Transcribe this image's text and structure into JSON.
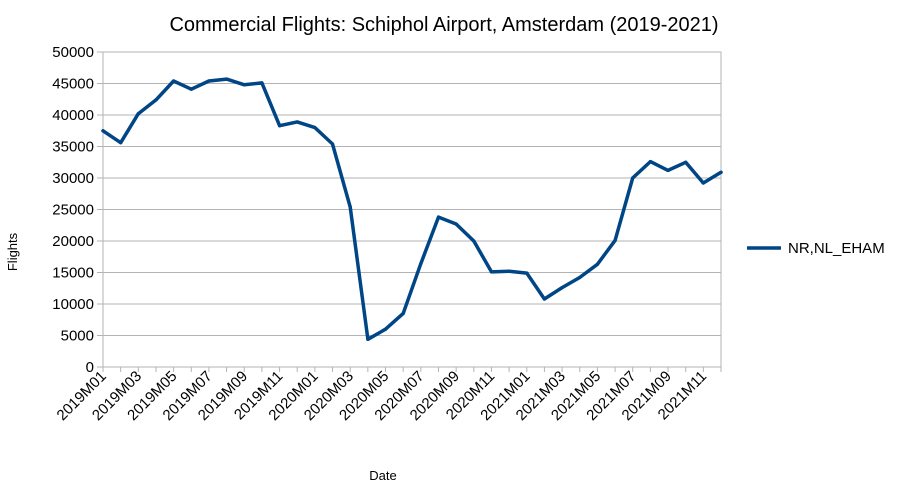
{
  "chart_data": {
    "type": "line",
    "title": "Commercial Flights: Schiphol Airport, Amsterdam (2019-2021)",
    "xlabel": "Date",
    "ylabel": "Flights",
    "ylim": [
      0,
      50000
    ],
    "yticks": [
      0,
      5000,
      10000,
      15000,
      20000,
      25000,
      30000,
      35000,
      40000,
      45000,
      50000
    ],
    "grid": true,
    "legend_position": "right",
    "categories": [
      "2019M01",
      "2019M02",
      "2019M03",
      "2019M04",
      "2019M05",
      "2019M06",
      "2019M07",
      "2019M08",
      "2019M09",
      "2019M10",
      "2019M11",
      "2019M12",
      "2020M01",
      "2020M02",
      "2020M03",
      "2020M04",
      "2020M05",
      "2020M06",
      "2020M07",
      "2020M08",
      "2020M09",
      "2020M10",
      "2020M11",
      "2020M12",
      "2021M01",
      "2021M02",
      "2021M03",
      "2021M04",
      "2021M05",
      "2021M06",
      "2021M07",
      "2021M08",
      "2021M09",
      "2021M10",
      "2021M11",
      "2021M12"
    ],
    "tick_labels": [
      "2019M01",
      "2019M03",
      "2019M05",
      "2019M07",
      "2019M09",
      "2019M11",
      "2020M01",
      "2020M03",
      "2020M05",
      "2020M07",
      "2020M09",
      "2020M11",
      "2021M01",
      "2021M03",
      "2021M05",
      "2021M07",
      "2021M09",
      "2021M11"
    ],
    "series": [
      {
        "name": "NR,NL_EHAM",
        "color": "#004586",
        "values": [
          37500,
          35600,
          40200,
          42400,
          45400,
          44100,
          45400,
          45700,
          44800,
          45100,
          38300,
          38900,
          38000,
          35400,
          25400,
          4400,
          6000,
          8500,
          16400,
          23800,
          22700,
          20000,
          15100,
          15200,
          14900,
          10800,
          12600,
          14200,
          16300,
          20100,
          30000,
          32600,
          31200,
          32500,
          29200,
          30900
        ]
      }
    ]
  }
}
